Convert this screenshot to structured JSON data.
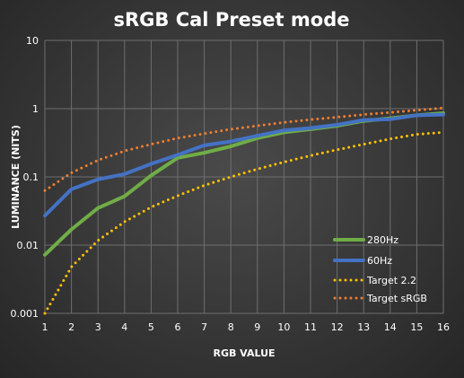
{
  "chart_data": {
    "type": "line",
    "title": "sRGB Cal Preset mode",
    "xlabel": "RGB VALUE",
    "ylabel": "LUMINANCE (NITS)",
    "y_scale": "log",
    "ylim": [
      0.001,
      10
    ],
    "xlim": [
      1,
      16
    ],
    "y_ticks": [
      "0.001",
      "0.01",
      "0.1",
      "1",
      "10"
    ],
    "x": [
      1,
      2,
      3,
      4,
      5,
      6,
      7,
      8,
      9,
      10,
      11,
      12,
      13,
      14,
      15,
      16
    ],
    "grid": true,
    "legend_position": "bottom-right",
    "series": [
      {
        "name": "280Hz",
        "color": "#70ad47",
        "style": "solid",
        "values": [
          0.0072,
          0.017,
          0.035,
          0.052,
          0.105,
          0.19,
          0.225,
          0.28,
          0.37,
          0.45,
          0.5,
          0.56,
          0.66,
          0.72,
          0.8,
          0.86
        ]
      },
      {
        "name": "60Hz",
        "color": "#4472c4",
        "style": "solid",
        "values": [
          0.027,
          0.066,
          0.092,
          0.11,
          0.155,
          0.21,
          0.29,
          0.33,
          0.4,
          0.48,
          0.52,
          0.58,
          0.68,
          0.7,
          0.8,
          0.82
        ]
      },
      {
        "name": "Target 2.2",
        "color": "#ffc000",
        "style": "dotted",
        "values": [
          0.001,
          0.0048,
          0.0117,
          0.022,
          0.036,
          0.053,
          0.075,
          0.1,
          0.13,
          0.165,
          0.205,
          0.25,
          0.3,
          0.36,
          0.42,
          0.45
        ]
      },
      {
        "name": "Target sRGB",
        "color": "#ed7d31",
        "style": "dotted",
        "values": [
          0.063,
          0.115,
          0.175,
          0.24,
          0.3,
          0.37,
          0.43,
          0.5,
          0.56,
          0.63,
          0.69,
          0.75,
          0.82,
          0.88,
          0.95,
          1.02
        ]
      }
    ]
  }
}
